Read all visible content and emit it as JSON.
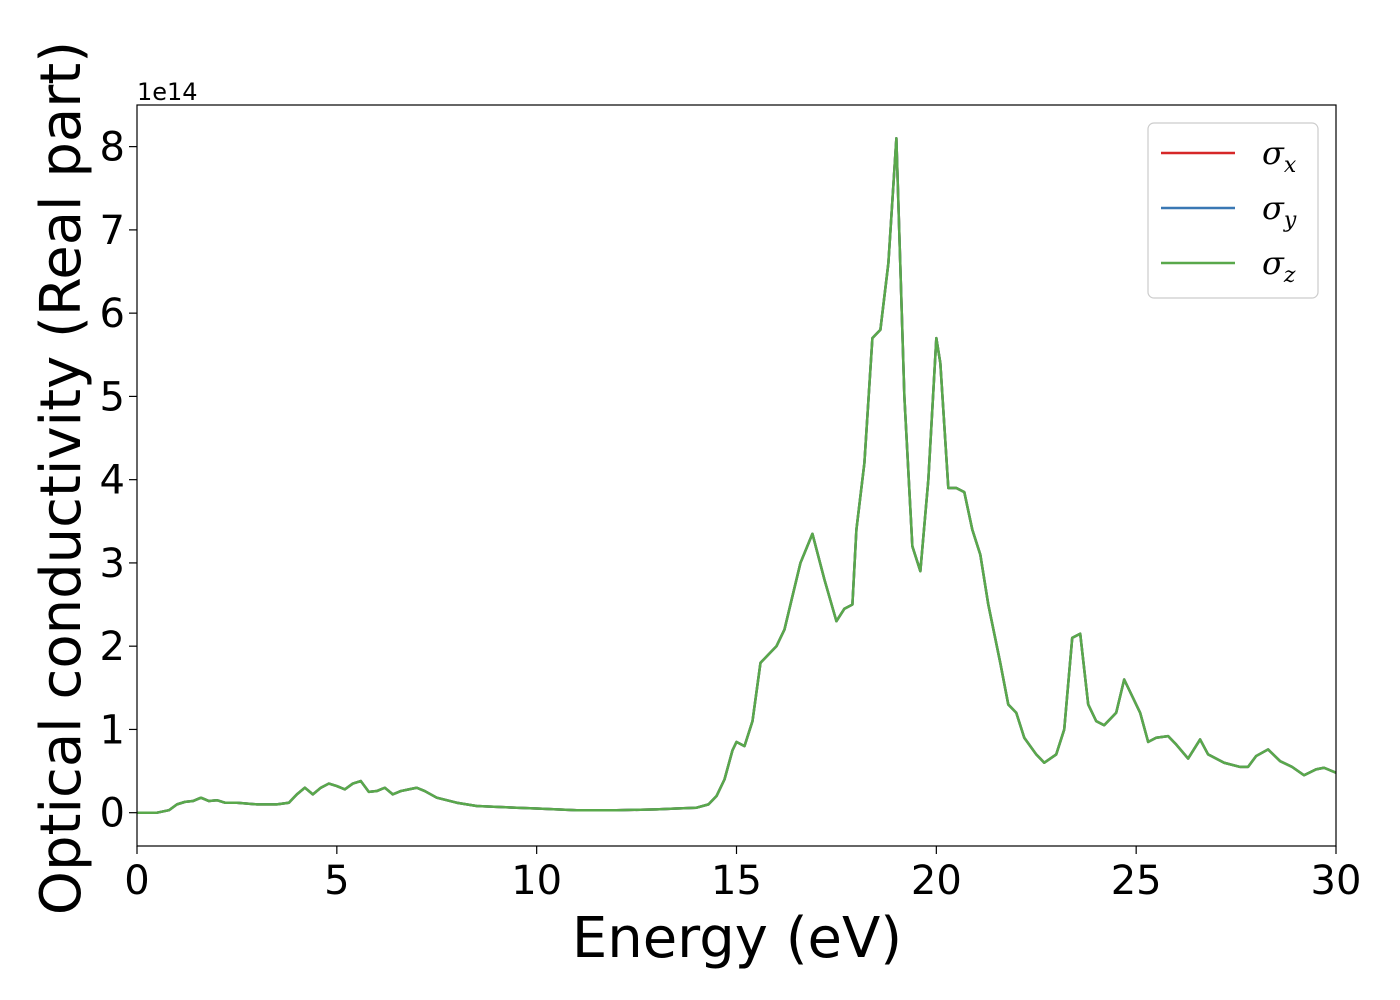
{
  "chart_data": {
    "type": "line",
    "xlabel": "Energy (eV)",
    "ylabel": "Optical conductivity (Real part)",
    "y_offset_label": "1e14",
    "xlim": [
      0,
      30
    ],
    "ylim": [
      -0.4,
      8.5
    ],
    "y_scale_factor": 100000000000000.0,
    "xticks": [
      0,
      5,
      10,
      15,
      20,
      25,
      30
    ],
    "yticks": [
      0,
      1,
      2,
      3,
      4,
      5,
      6,
      7,
      8
    ],
    "grid": false,
    "legend_position": "top-right",
    "x": [
      0,
      0.5,
      0.8,
      1.0,
      1.2,
      1.4,
      1.6,
      1.8,
      2.0,
      2.2,
      2.5,
      3.0,
      3.5,
      3.8,
      4.0,
      4.2,
      4.4,
      4.6,
      4.8,
      5.0,
      5.2,
      5.4,
      5.6,
      5.8,
      6.0,
      6.2,
      6.4,
      6.6,
      6.8,
      7.0,
      7.2,
      7.5,
      8.0,
      8.5,
      9.0,
      9.5,
      10.0,
      11.0,
      12.0,
      13.0,
      13.5,
      14.0,
      14.3,
      14.5,
      14.7,
      14.9,
      15.0,
      15.2,
      15.4,
      15.6,
      15.8,
      16.0,
      16.2,
      16.4,
      16.6,
      16.9,
      17.2,
      17.5,
      17.7,
      17.9,
      18.0,
      18.2,
      18.4,
      18.6,
      18.8,
      19.0,
      19.2,
      19.4,
      19.6,
      19.8,
      20.0,
      20.1,
      20.3,
      20.5,
      20.7,
      20.9,
      21.1,
      21.3,
      21.6,
      21.8,
      22.0,
      22.2,
      22.5,
      22.7,
      23.0,
      23.2,
      23.4,
      23.6,
      23.8,
      24.0,
      24.2,
      24.5,
      24.7,
      24.9,
      25.1,
      25.3,
      25.5,
      25.8,
      26.0,
      26.3,
      26.6,
      26.8,
      27.2,
      27.6,
      27.8,
      28.0,
      28.3,
      28.6,
      28.9,
      29.2,
      29.5,
      29.7,
      30.0
    ],
    "series": [
      {
        "name": "σx",
        "color": "#d62728",
        "values": [
          0.0,
          0.0,
          0.03,
          0.1,
          0.13,
          0.14,
          0.18,
          0.14,
          0.15,
          0.12,
          0.12,
          0.1,
          0.1,
          0.12,
          0.22,
          0.3,
          0.22,
          0.3,
          0.35,
          0.32,
          0.28,
          0.35,
          0.38,
          0.25,
          0.26,
          0.3,
          0.22,
          0.26,
          0.28,
          0.3,
          0.26,
          0.18,
          0.12,
          0.08,
          0.07,
          0.06,
          0.05,
          0.03,
          0.03,
          0.04,
          0.05,
          0.06,
          0.1,
          0.2,
          0.4,
          0.75,
          0.85,
          0.8,
          1.1,
          1.8,
          1.9,
          2.0,
          2.2,
          2.6,
          3.0,
          3.35,
          2.8,
          2.3,
          2.45,
          2.5,
          3.4,
          4.2,
          5.7,
          5.8,
          6.6,
          8.1,
          5.0,
          3.2,
          2.9,
          4.0,
          5.7,
          5.4,
          3.9,
          3.9,
          3.85,
          3.4,
          3.1,
          2.5,
          1.8,
          1.3,
          1.2,
          0.9,
          0.7,
          0.6,
          0.7,
          1.0,
          2.1,
          2.15,
          1.3,
          1.1,
          1.05,
          1.2,
          1.6,
          1.4,
          1.2,
          0.85,
          0.9,
          0.92,
          0.82,
          0.65,
          0.88,
          0.7,
          0.6,
          0.55,
          0.55,
          0.68,
          0.76,
          0.62,
          0.55,
          0.45,
          0.52,
          0.54,
          0.48
        ]
      },
      {
        "name": "σy",
        "color": "#3a78b4",
        "values": [
          0.0,
          0.0,
          0.03,
          0.1,
          0.13,
          0.14,
          0.18,
          0.14,
          0.15,
          0.12,
          0.12,
          0.1,
          0.1,
          0.12,
          0.22,
          0.3,
          0.22,
          0.3,
          0.35,
          0.32,
          0.28,
          0.35,
          0.38,
          0.25,
          0.26,
          0.3,
          0.22,
          0.26,
          0.28,
          0.3,
          0.26,
          0.18,
          0.12,
          0.08,
          0.07,
          0.06,
          0.05,
          0.03,
          0.03,
          0.04,
          0.05,
          0.06,
          0.1,
          0.2,
          0.4,
          0.75,
          0.85,
          0.8,
          1.1,
          1.8,
          1.9,
          2.0,
          2.2,
          2.6,
          3.0,
          3.35,
          2.8,
          2.3,
          2.45,
          2.5,
          3.4,
          4.2,
          5.7,
          5.8,
          6.6,
          8.1,
          5.0,
          3.2,
          2.9,
          4.0,
          5.7,
          5.4,
          3.9,
          3.9,
          3.85,
          3.4,
          3.1,
          2.5,
          1.8,
          1.3,
          1.2,
          0.9,
          0.7,
          0.6,
          0.7,
          1.0,
          2.1,
          2.15,
          1.3,
          1.1,
          1.05,
          1.2,
          1.6,
          1.4,
          1.2,
          0.85,
          0.9,
          0.92,
          0.82,
          0.65,
          0.88,
          0.7,
          0.6,
          0.55,
          0.55,
          0.68,
          0.76,
          0.62,
          0.55,
          0.45,
          0.52,
          0.54,
          0.48
        ]
      },
      {
        "name": "σz",
        "color": "#59a84b",
        "values": [
          0.0,
          0.0,
          0.03,
          0.1,
          0.13,
          0.14,
          0.18,
          0.14,
          0.15,
          0.12,
          0.12,
          0.1,
          0.1,
          0.12,
          0.22,
          0.3,
          0.22,
          0.3,
          0.35,
          0.32,
          0.28,
          0.35,
          0.38,
          0.25,
          0.26,
          0.3,
          0.22,
          0.26,
          0.28,
          0.3,
          0.26,
          0.18,
          0.12,
          0.08,
          0.07,
          0.06,
          0.05,
          0.03,
          0.03,
          0.04,
          0.05,
          0.06,
          0.1,
          0.2,
          0.4,
          0.75,
          0.85,
          0.8,
          1.1,
          1.8,
          1.9,
          2.0,
          2.2,
          2.6,
          3.0,
          3.35,
          2.8,
          2.3,
          2.45,
          2.5,
          3.4,
          4.2,
          5.7,
          5.8,
          6.6,
          8.1,
          5.0,
          3.2,
          2.9,
          4.0,
          5.7,
          5.4,
          3.9,
          3.9,
          3.85,
          3.4,
          3.1,
          2.5,
          1.8,
          1.3,
          1.2,
          0.9,
          0.7,
          0.6,
          0.7,
          1.0,
          2.1,
          2.15,
          1.3,
          1.1,
          1.05,
          1.2,
          1.6,
          1.4,
          1.2,
          0.85,
          0.9,
          0.92,
          0.82,
          0.65,
          0.88,
          0.7,
          0.6,
          0.55,
          0.55,
          0.68,
          0.76,
          0.62,
          0.55,
          0.45,
          0.52,
          0.54,
          0.48
        ]
      }
    ],
    "legend": [
      {
        "symbol": "σ",
        "sub": "x"
      },
      {
        "symbol": "σ",
        "sub": "y"
      },
      {
        "symbol": "σ",
        "sub": "z"
      }
    ]
  }
}
